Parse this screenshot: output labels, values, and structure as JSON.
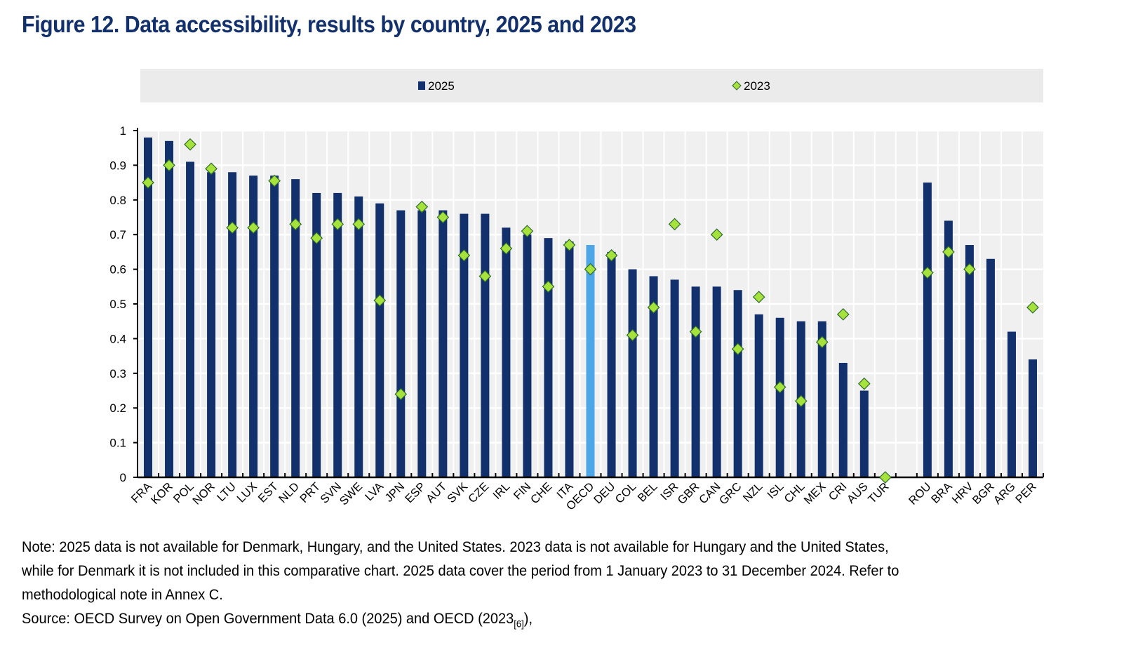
{
  "title": "Figure 12. Data accessibility, results by country, 2025 and 2023",
  "chart_data": {
    "type": "bar",
    "title": "Figure 12. Data accessibility, results by country, 2025 and 2023",
    "xlabel": "",
    "ylabel": "",
    "ylim": [
      0,
      1
    ],
    "yticks": [
      "0",
      "0.1",
      "0.2",
      "0.3",
      "0.4",
      "0.5",
      "0.6",
      "0.7",
      "0.8",
      "0.9",
      "1"
    ],
    "grid": true,
    "legend_position": "top",
    "categories": [
      "FRA",
      "KOR",
      "POL",
      "NOR",
      "LTU",
      "LUX",
      "EST",
      "NLD",
      "PRT",
      "SVN",
      "SWE",
      "LVA",
      "JPN",
      "ESP",
      "AUT",
      "SVK",
      "CZE",
      "IRL",
      "FIN",
      "CHE",
      "ITA",
      "OECD",
      "DEU",
      "COL",
      "BEL",
      "ISR",
      "GBR",
      "CAN",
      "GRC",
      "NZL",
      "ISL",
      "CHL",
      "MEX",
      "CRI",
      "AUS",
      "TUR",
      "",
      "ROU",
      "BRA",
      "HRV",
      "BGR",
      "ARG",
      "PER"
    ],
    "highlight_category": "OECD",
    "series": [
      {
        "name": "2025",
        "type": "bar",
        "color": "#12306b",
        "highlight_color": "#4da6e6",
        "values": [
          0.98,
          0.97,
          0.91,
          0.88,
          0.88,
          0.87,
          0.87,
          0.86,
          0.82,
          0.82,
          0.81,
          0.79,
          0.77,
          0.77,
          0.77,
          0.76,
          0.76,
          0.72,
          0.7,
          0.69,
          0.68,
          0.67,
          0.65,
          0.6,
          0.58,
          0.57,
          0.55,
          0.55,
          0.54,
          0.47,
          0.46,
          0.45,
          0.45,
          0.33,
          0.25,
          null,
          null,
          0.85,
          0.74,
          0.67,
          0.63,
          0.42,
          0.34
        ]
      },
      {
        "name": "2023",
        "type": "marker",
        "marker": "diamond",
        "color": "#a6e23c",
        "values": [
          0.85,
          0.9,
          0.96,
          0.89,
          0.72,
          0.72,
          0.855,
          0.73,
          0.69,
          0.73,
          0.73,
          0.51,
          0.24,
          0.78,
          0.75,
          0.64,
          0.58,
          0.66,
          0.71,
          0.55,
          0.67,
          0.6,
          0.64,
          0.41,
          0.49,
          0.73,
          0.42,
          0.7,
          0.37,
          0.52,
          0.26,
          0.22,
          0.39,
          0.47,
          0.27,
          0.0,
          null,
          0.59,
          0.65,
          0.6,
          null,
          null,
          0.49
        ]
      }
    ]
  },
  "notes": {
    "note_line1": "Note: 2025 data is not available for Denmark, Hungary, and the United States. 2023 data is not available for Hungary and the United States,",
    "note_line2": "while for Denmark it is not included in this comparative chart. 2025 data cover the period from 1 January 2023 to 31 December 2024. Refer to",
    "note_line3": "methodological note in Annex C.",
    "source": "Source: OECD Survey on Open Government Data 6.0 (2025) and OECD (2023",
    "source_ref": "[6]",
    "source_end": "),"
  }
}
